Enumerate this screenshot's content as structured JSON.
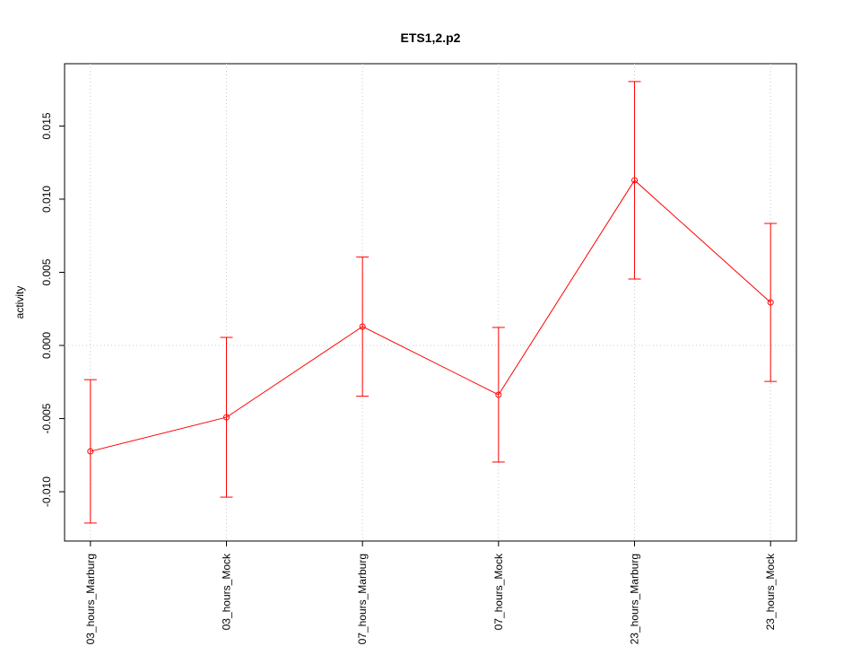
{
  "chart_data": {
    "type": "line",
    "title": "ETS1,2.p2",
    "ylabel": "activity",
    "categories": [
      "03_hours_Marburg",
      "03_hours_Mock",
      "07_hours_Marburg",
      "07_hours_Mock",
      "23_hours_Marburg",
      "23_hours_Mock"
    ],
    "series": [
      {
        "color": "#ff0000",
        "values": [
          -0.00724,
          -0.00491,
          0.00129,
          -0.00337,
          0.01129,
          0.00294
        ],
        "errors": [
          0.0049,
          0.00546,
          0.00476,
          0.0046,
          0.00675,
          0.0054
        ]
      }
    ],
    "ylim": [
      -0.01337,
      0.01926
    ],
    "yticks": [
      {
        "value": -0.01,
        "label": "-0.010"
      },
      {
        "value": -0.005,
        "label": "-0.005"
      },
      {
        "value": 0,
        "label": "0.000"
      },
      {
        "value": 0.005,
        "label": "0.005"
      },
      {
        "value": 0.01,
        "label": "0.010"
      },
      {
        "value": 0.015,
        "label": "0.015"
      }
    ],
    "hline": 0,
    "grid": true
  }
}
